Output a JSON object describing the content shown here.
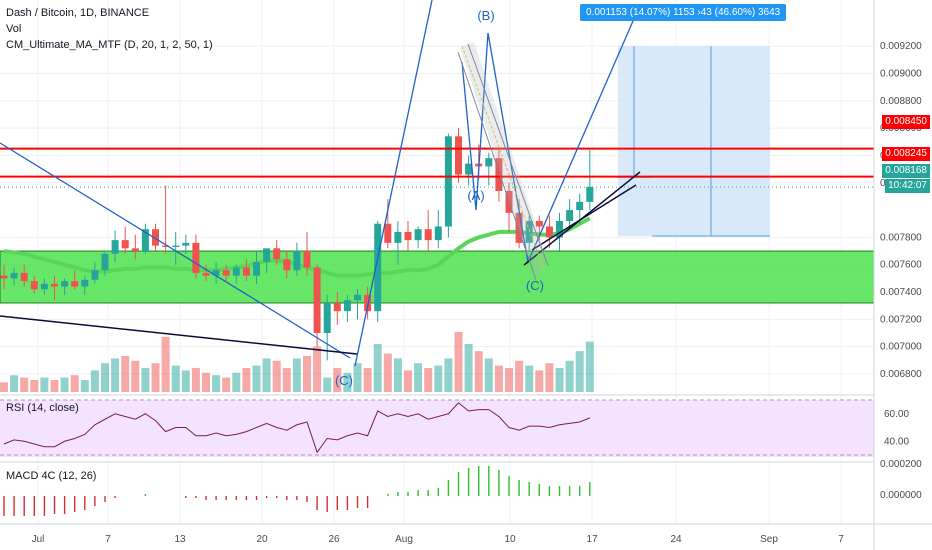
{
  "header": {
    "title": "Dash / Bitcoin, 1D, BINANCE",
    "vol_label": "Vol",
    "indicator_label": "CM_Ultimate_MA_MTF (D, 20, 1, 2, 50, 1)"
  },
  "rsi": {
    "label": "RSI (14, close)",
    "ticks": [
      "60.00",
      "40.00"
    ]
  },
  "macd": {
    "label": "MACD 4C (12, 26)",
    "ticks": [
      "0.000200",
      "0.000000"
    ]
  },
  "measure": {
    "text": "0.001153 (14.07%) 1153 ›43 (46.60%) 3643"
  },
  "price_tags": {
    "resistance_high": "0.008450",
    "resistance_low": "0.008245",
    "last_price": "0.008168",
    "countdown": "10:42:07"
  },
  "wave_labels": [
    "(B)",
    "(A)",
    "(C)",
    "(C)"
  ],
  "colors": {
    "up": "#26a69a",
    "down": "#ef5350",
    "support_zone": "#4ee24e",
    "resistance": "#ff0000",
    "trendline": "#1e62c8",
    "black_line": "#0b0b3b",
    "rsi_bg": "#f3e3ff",
    "rsi_line": "#7b1f4a",
    "measure_bg": "#cfe4f7"
  },
  "chart_data": {
    "type": "candlestick",
    "symbol": "Dash / Bitcoin",
    "timeframe": "1D",
    "exchange": "BINANCE",
    "ylim": [
      0.0066,
      0.0093
    ],
    "y_ticks": [
      "0.009200",
      "0.009000",
      "0.008800",
      "0.008600",
      "0.008400",
      "0.008200",
      "0.007800",
      "0.007600",
      "0.007400",
      "0.007200",
      "0.007000",
      "0.006800"
    ],
    "x_ticks": [
      "Jul",
      "7",
      "13",
      "20",
      "26",
      "Aug",
      "10",
      "17",
      "24",
      "Sep",
      "7"
    ],
    "candles": [
      {
        "o": 0.00752,
        "h": 0.0076,
        "l": 0.00742,
        "c": 0.0075
      },
      {
        "o": 0.0075,
        "h": 0.00758,
        "l": 0.00745,
        "c": 0.00754
      },
      {
        "o": 0.00754,
        "h": 0.0076,
        "l": 0.00744,
        "c": 0.00748
      },
      {
        "o": 0.00748,
        "h": 0.00752,
        "l": 0.00739,
        "c": 0.00742
      },
      {
        "o": 0.00742,
        "h": 0.0075,
        "l": 0.00738,
        "c": 0.00746
      },
      {
        "o": 0.00746,
        "h": 0.00752,
        "l": 0.00734,
        "c": 0.00744
      },
      {
        "o": 0.00744,
        "h": 0.0075,
        "l": 0.00738,
        "c": 0.00748
      },
      {
        "o": 0.00748,
        "h": 0.00756,
        "l": 0.00742,
        "c": 0.00744
      },
      {
        "o": 0.00744,
        "h": 0.00752,
        "l": 0.00738,
        "c": 0.00749
      },
      {
        "o": 0.00749,
        "h": 0.00762,
        "l": 0.00746,
        "c": 0.00756
      },
      {
        "o": 0.00756,
        "h": 0.0077,
        "l": 0.00752,
        "c": 0.00768
      },
      {
        "o": 0.00768,
        "h": 0.00785,
        "l": 0.00762,
        "c": 0.00778
      },
      {
        "o": 0.00778,
        "h": 0.00788,
        "l": 0.00768,
        "c": 0.00772
      },
      {
        "o": 0.00772,
        "h": 0.00782,
        "l": 0.00764,
        "c": 0.0077
      },
      {
        "o": 0.0077,
        "h": 0.0079,
        "l": 0.00768,
        "c": 0.00786
      },
      {
        "o": 0.00786,
        "h": 0.0079,
        "l": 0.0077,
        "c": 0.00774
      },
      {
        "o": 0.00774,
        "h": 0.00818,
        "l": 0.00768,
        "c": 0.00773
      },
      {
        "o": 0.00773,
        "h": 0.00784,
        "l": 0.0076,
        "c": 0.00774
      },
      {
        "o": 0.00774,
        "h": 0.00782,
        "l": 0.00768,
        "c": 0.00776
      },
      {
        "o": 0.00776,
        "h": 0.00782,
        "l": 0.0075,
        "c": 0.00754
      },
      {
        "o": 0.00754,
        "h": 0.0076,
        "l": 0.00748,
        "c": 0.00752
      },
      {
        "o": 0.00752,
        "h": 0.00762,
        "l": 0.00746,
        "c": 0.00756
      },
      {
        "o": 0.00756,
        "h": 0.0076,
        "l": 0.00748,
        "c": 0.00752
      },
      {
        "o": 0.00752,
        "h": 0.0076,
        "l": 0.00746,
        "c": 0.00758
      },
      {
        "o": 0.00758,
        "h": 0.00764,
        "l": 0.00748,
        "c": 0.00752
      },
      {
        "o": 0.00752,
        "h": 0.0077,
        "l": 0.00746,
        "c": 0.00762
      },
      {
        "o": 0.00762,
        "h": 0.0077,
        "l": 0.00754,
        "c": 0.00772
      },
      {
        "o": 0.00772,
        "h": 0.00778,
        "l": 0.0076,
        "c": 0.00764
      },
      {
        "o": 0.00764,
        "h": 0.0077,
        "l": 0.0075,
        "c": 0.00756
      },
      {
        "o": 0.00756,
        "h": 0.00776,
        "l": 0.00752,
        "c": 0.0077
      },
      {
        "o": 0.0077,
        "h": 0.00784,
        "l": 0.00752,
        "c": 0.00758
      },
      {
        "o": 0.00758,
        "h": 0.0076,
        "l": 0.007,
        "c": 0.0071
      },
      {
        "o": 0.0071,
        "h": 0.00738,
        "l": 0.0069,
        "c": 0.00732
      },
      {
        "o": 0.00732,
        "h": 0.0074,
        "l": 0.00716,
        "c": 0.00726
      },
      {
        "o": 0.00726,
        "h": 0.00738,
        "l": 0.00718,
        "c": 0.00734
      },
      {
        "o": 0.00734,
        "h": 0.00742,
        "l": 0.0072,
        "c": 0.00738
      },
      {
        "o": 0.00738,
        "h": 0.00744,
        "l": 0.0072,
        "c": 0.00726
      },
      {
        "o": 0.00726,
        "h": 0.00792,
        "l": 0.00718,
        "c": 0.0079
      },
      {
        "o": 0.0079,
        "h": 0.00808,
        "l": 0.00772,
        "c": 0.00776
      },
      {
        "o": 0.00776,
        "h": 0.00792,
        "l": 0.0076,
        "c": 0.00784
      },
      {
        "o": 0.00784,
        "h": 0.00792,
        "l": 0.0077,
        "c": 0.00778
      },
      {
        "o": 0.00778,
        "h": 0.00788,
        "l": 0.00772,
        "c": 0.00786
      },
      {
        "o": 0.00786,
        "h": 0.008,
        "l": 0.0077,
        "c": 0.00778
      },
      {
        "o": 0.00778,
        "h": 0.008,
        "l": 0.00772,
        "c": 0.00788
      },
      {
        "o": 0.00788,
        "h": 0.00856,
        "l": 0.0078,
        "c": 0.00854
      },
      {
        "o": 0.00854,
        "h": 0.0086,
        "l": 0.0082,
        "c": 0.00826
      },
      {
        "o": 0.00826,
        "h": 0.0084,
        "l": 0.00818,
        "c": 0.00834
      },
      {
        "o": 0.00834,
        "h": 0.00848,
        "l": 0.00822,
        "c": 0.00832
      },
      {
        "o": 0.00832,
        "h": 0.00842,
        "l": 0.00818,
        "c": 0.00838
      },
      {
        "o": 0.00838,
        "h": 0.00844,
        "l": 0.00806,
        "c": 0.00814
      },
      {
        "o": 0.00814,
        "h": 0.0082,
        "l": 0.00784,
        "c": 0.00798
      },
      {
        "o": 0.00798,
        "h": 0.00808,
        "l": 0.00772,
        "c": 0.00776
      },
      {
        "o": 0.00776,
        "h": 0.00796,
        "l": 0.0077,
        "c": 0.00792
      },
      {
        "o": 0.00792,
        "h": 0.00796,
        "l": 0.00778,
        "c": 0.00788
      },
      {
        "o": 0.00788,
        "h": 0.00796,
        "l": 0.00772,
        "c": 0.0078
      },
      {
        "o": 0.0078,
        "h": 0.00798,
        "l": 0.0077,
        "c": 0.00792
      },
      {
        "o": 0.00792,
        "h": 0.00808,
        "l": 0.00786,
        "c": 0.008
      },
      {
        "o": 0.008,
        "h": 0.00812,
        "l": 0.0079,
        "c": 0.00806
      },
      {
        "o": 0.00806,
        "h": 0.00844,
        "l": 0.008,
        "c": 0.00817
      }
    ],
    "volume": [
      8,
      14,
      12,
      10,
      12,
      10,
      12,
      14,
      10,
      18,
      24,
      28,
      30,
      26,
      20,
      24,
      46,
      22,
      18,
      20,
      16,
      14,
      12,
      16,
      20,
      22,
      28,
      26,
      20,
      28,
      30,
      38,
      12,
      20,
      16,
      24,
      20,
      40,
      32,
      28,
      18,
      24,
      20,
      22,
      28,
      50,
      40,
      34,
      28,
      22,
      20,
      26,
      22,
      18,
      24,
      20,
      26,
      34,
      42
    ],
    "rsi": [
      38,
      41,
      40,
      38,
      36,
      36,
      40,
      42,
      45,
      52,
      56,
      60,
      58,
      56,
      60,
      55,
      47,
      50,
      50,
      44,
      44,
      46,
      44,
      45,
      47,
      50,
      53,
      50,
      48,
      52,
      54,
      32,
      42,
      41,
      44,
      46,
      44,
      62,
      58,
      60,
      58,
      60,
      56,
      58,
      60,
      68,
      62,
      63,
      63,
      58,
      50,
      48,
      51,
      51,
      50,
      52,
      53,
      54,
      57
    ],
    "macd_hist": [
      -10,
      -10,
      -10,
      -10,
      -10,
      -9,
      -9,
      -8,
      -7,
      -5,
      -3,
      -1,
      0,
      0,
      1,
      0,
      0,
      0,
      -1,
      -1,
      -2,
      -2,
      -2,
      -2,
      -2,
      -2,
      -1,
      -1,
      -2,
      -2,
      -3,
      -7,
      -8,
      -7,
      -7,
      -6,
      -6,
      0,
      1,
      2,
      2,
      3,
      3,
      4,
      8,
      12,
      14,
      15,
      15,
      13,
      10,
      8,
      7,
      6,
      5,
      5,
      5,
      5,
      7
    ],
    "levels": {
      "resistance": [
        0.00845,
        0.008245
      ],
      "last": 0.008168,
      "support_zone": [
        0.00732,
        0.0077
      ]
    }
  }
}
